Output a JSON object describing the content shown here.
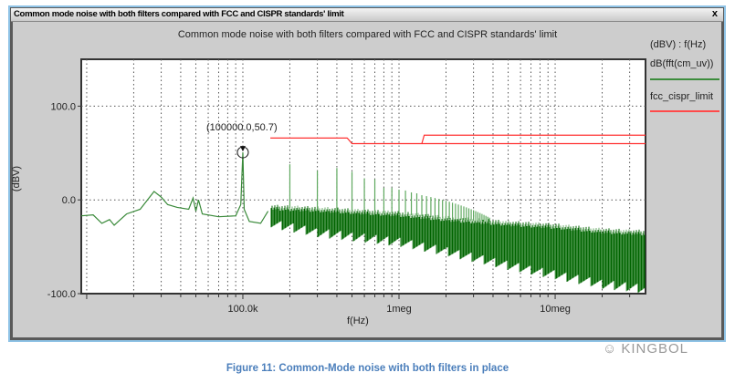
{
  "window": {
    "title": "Common mode noise with both filters compared with FCC and CISPR standards' limit",
    "close_label": "x"
  },
  "legend": {
    "header": "(dBV) : f(Hz)",
    "items": [
      {
        "label": "dB(fft(cm_uv))",
        "color": "#006400"
      },
      {
        "label": "fcc_cispr_limit",
        "color": "#ff3030"
      }
    ]
  },
  "caption": "Figure 11: Common-Mode noise with both filters in place",
  "watermark": "KINGBOL",
  "chart_data": {
    "type": "line",
    "title": "Common mode noise with both filters compared with FCC and CISPR standards' limit",
    "xlabel": "f(Hz)",
    "ylabel": "(dBV)",
    "xscale": "log",
    "xlim": [
      9230,
      37900000
    ],
    "ylim": [
      -100,
      150
    ],
    "xticks": [
      {
        "value": 100000,
        "label": "100.0k"
      },
      {
        "value": 1000000,
        "label": "1meg"
      },
      {
        "value": 10000000,
        "label": "10meg"
      }
    ],
    "yticks": [
      {
        "value": 100,
        "label": "100.0"
      },
      {
        "value": 0,
        "label": "0.0"
      },
      {
        "value": -100,
        "label": "-100.0"
      }
    ],
    "grid": true,
    "legend_position": "right",
    "annotation": {
      "x": 100000,
      "y": 50.7,
      "label": "(100000.0,50.7)"
    },
    "series": [
      {
        "name": "dB(fft(cm_uv))",
        "color": "#006400",
        "points": [
          [
            9230,
            -17
          ],
          [
            11000,
            -16
          ],
          [
            12500,
            -25
          ],
          [
            14000,
            -21
          ],
          [
            15000,
            -27
          ],
          [
            18000,
            -15
          ],
          [
            22000,
            -10
          ],
          [
            27000,
            9
          ],
          [
            30000,
            3
          ],
          [
            33000,
            -5
          ],
          [
            38000,
            -8
          ],
          [
            45000,
            -10
          ],
          [
            48000,
            2
          ],
          [
            50000,
            -12
          ],
          [
            52000,
            0
          ],
          [
            55000,
            -15
          ],
          [
            70000,
            -18
          ],
          [
            90000,
            -17
          ],
          [
            97000,
            -5
          ],
          [
            100000,
            50.7
          ],
          [
            102000,
            -10
          ],
          [
            110000,
            -23
          ],
          [
            130000,
            -25
          ],
          [
            145000,
            -12
          ]
        ],
        "band": {
          "x": [
            150000,
            300000,
            1000000,
            2000000,
            5000000,
            10000000,
            20000000,
            37900000
          ],
          "upper": [
            -8,
            -10,
            -15,
            -20,
            -25,
            -28,
            -33,
            -35
          ],
          "lower": [
            -25,
            -35,
            -45,
            -55,
            -70,
            -80,
            -90,
            -95
          ]
        },
        "harmonics": {
          "fundamental_hz": 100000,
          "peaks_dbv": [
            38,
            31,
            34,
            30,
            23,
            22,
            13,
            13,
            11,
            10,
            8,
            7,
            5,
            4,
            3,
            2,
            1,
            0,
            -1,
            -2,
            -3,
            -4,
            -5,
            -6,
            -7,
            -8,
            -9,
            -10,
            -11,
            -12,
            -13,
            -14,
            -15,
            -16,
            -17,
            -18,
            -19
          ]
        }
      },
      {
        "name": "fcc_cispr_limit",
        "color": "#ff3030",
        "segments": [
          [
            [
              150000,
              66
            ],
            [
              466000,
              66
            ],
            [
              500000,
              60
            ],
            [
              37900000,
              60
            ]
          ],
          [
            [
              1400000,
              60
            ],
            [
              1450000,
              69
            ],
            [
              37900000,
              69
            ]
          ]
        ]
      }
    ]
  }
}
